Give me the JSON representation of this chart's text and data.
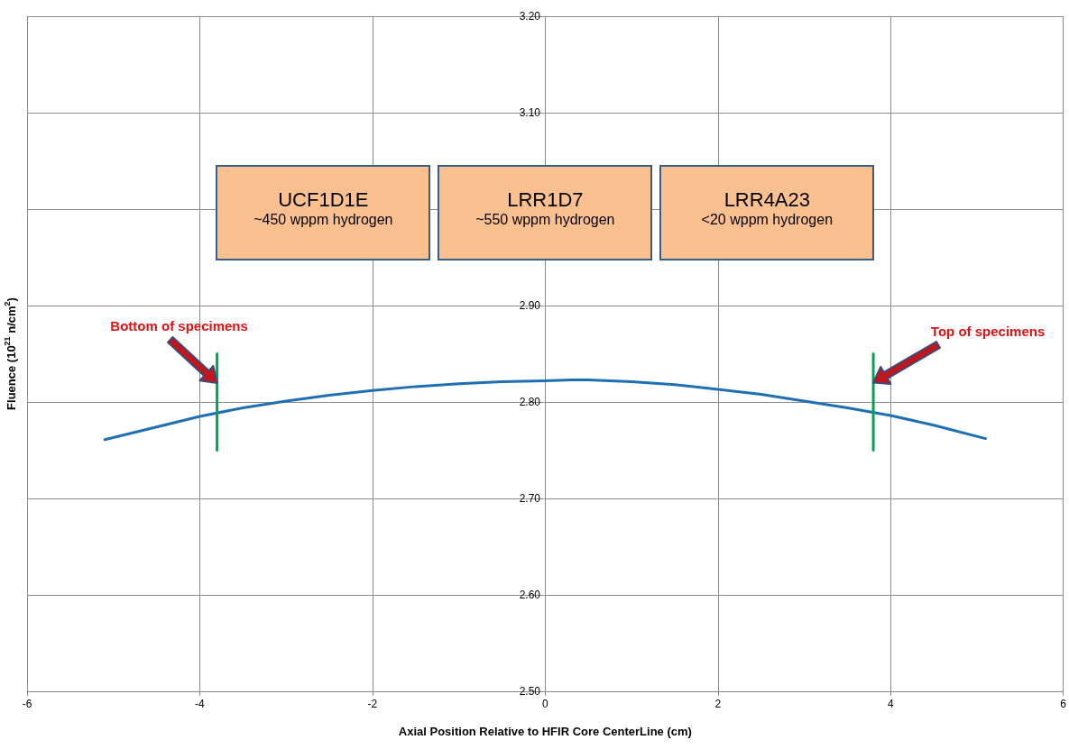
{
  "chart_data": {
    "type": "line",
    "xlabel": "Axial Position Relative to HFIR Core CenterLine (cm)",
    "ylabel": "Fluence (10$^{21}$ n/cm$^{2}$)",
    "xlim": [
      -6,
      6
    ],
    "xticks": [
      -6,
      -4,
      -2,
      0,
      2,
      4,
      6
    ],
    "ylim": [
      2.5,
      3.2
    ],
    "yticks": [
      {
        "value": 2.5,
        "label": "2.50"
      },
      {
        "value": 2.6,
        "label": "2.60"
      },
      {
        "value": 2.7,
        "label": "2.70"
      },
      {
        "value": 2.8,
        "label": "2.80"
      },
      {
        "value": 2.9,
        "label": "2.90"
      },
      {
        "value": 3.0,
        "label": null
      },
      {
        "value": 3.1,
        "label": "3.10"
      },
      {
        "value": 3.2,
        "label": "3.20"
      }
    ],
    "grid": true,
    "marker": "none",
    "line_style": "solid",
    "series": [
      {
        "color": "#1f6fb5",
        "x": [
          -5.1,
          -4.5,
          -4,
          -3.5,
          -3,
          -2.5,
          -2,
          -1.5,
          -1,
          -0.5,
          0,
          0.3,
          0.5,
          1,
          1.5,
          2,
          2.5,
          3,
          3.5,
          4,
          4.5,
          5.1
        ],
        "values": [
          2.761,
          2.774,
          2.785,
          2.794,
          2.801,
          2.807,
          2.812,
          2.816,
          2.819,
          2.821,
          2.822,
          2.823,
          2.823,
          2.821,
          2.818,
          2.813,
          2.808,
          2.801,
          2.794,
          2.786,
          2.776,
          2.762
        ]
      },
      {
        "color": "#00a650",
        "x": [
          -3.8,
          -3.8
        ],
        "values": [
          2.75,
          2.85
        ]
      },
      {
        "color": "#00a650",
        "x": [
          3.8,
          3.8
        ],
        "values": [
          2.75,
          2.85
        ]
      }
    ],
    "annotations": [
      "UCF1D1E\n~450 wppm hydrogen",
      "LRR1D7\n~550 wppm hydrogen",
      "LRR4A23\n<20 wppm hydrogen",
      "Bottom of specimens",
      "Top of specimens"
    ]
  }
}
